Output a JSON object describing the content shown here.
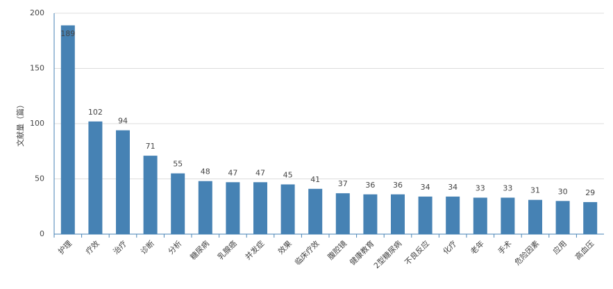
{
  "chart_data": {
    "type": "bar",
    "y_label": "文献量（篇）",
    "categories": [
      "护理",
      "疗效",
      "治疗",
      "诊断",
      "分析",
      "糖尿病",
      "乳腺癌",
      "并发症",
      "效果",
      "临床疗效",
      "腹腔镜",
      "健康教育",
      "2型糖尿病",
      "不良反应",
      "化疗",
      "老年",
      "手术",
      "危险因素",
      "应用",
      "高血压"
    ],
    "values": [
      189,
      102,
      94,
      71,
      55,
      48,
      47,
      47,
      45,
      41,
      37,
      36,
      36,
      34,
      34,
      33,
      33,
      31,
      30,
      29
    ],
    "color": "#4682b4",
    "ylim": [
      0,
      200
    ],
    "yticks": [
      0,
      50,
      100,
      150,
      200
    ],
    "grid": true
  }
}
